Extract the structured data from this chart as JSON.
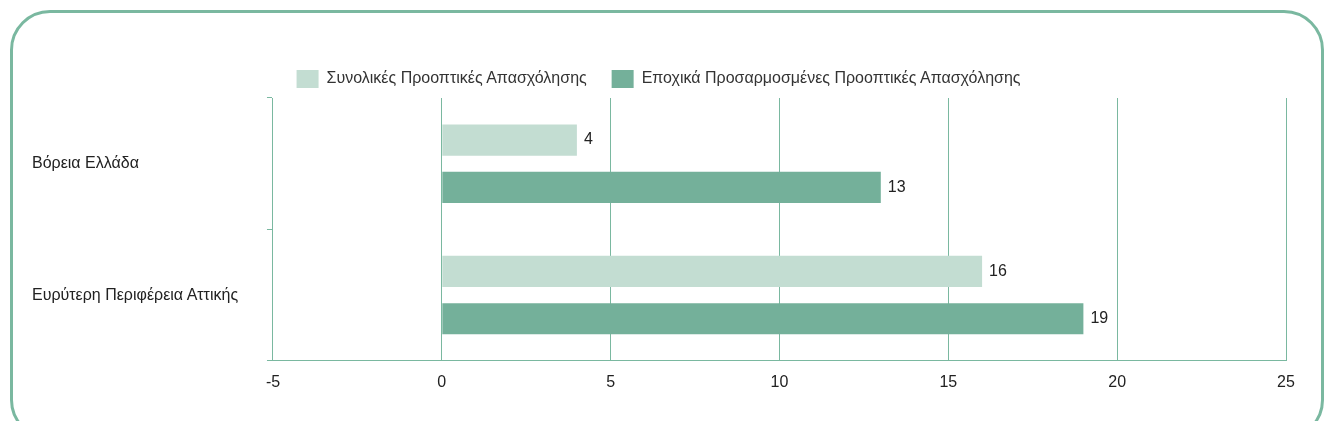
{
  "chart_data": {
    "type": "bar",
    "orientation": "horizontal",
    "categories": [
      "Βόρεια Ελλάδα",
      "Ευρύτερη Περιφέρεια Αττικής"
    ],
    "series": [
      {
        "name": "Συνολικές Προοπτικές Απασχόλησης",
        "color": "#c3ddd2",
        "values": [
          4,
          16
        ]
      },
      {
        "name": "Εποχικά Προσαρμοσμένες Προοπτικές Απασχόλησης",
        "color": "#74b09a",
        "values": [
          13,
          19
        ]
      }
    ],
    "xlim": [
      -5,
      25
    ],
    "xticks": [
      -5,
      0,
      5,
      10,
      15,
      20,
      25
    ],
    "grid": "x",
    "legend": "top",
    "data_labels": true
  }
}
